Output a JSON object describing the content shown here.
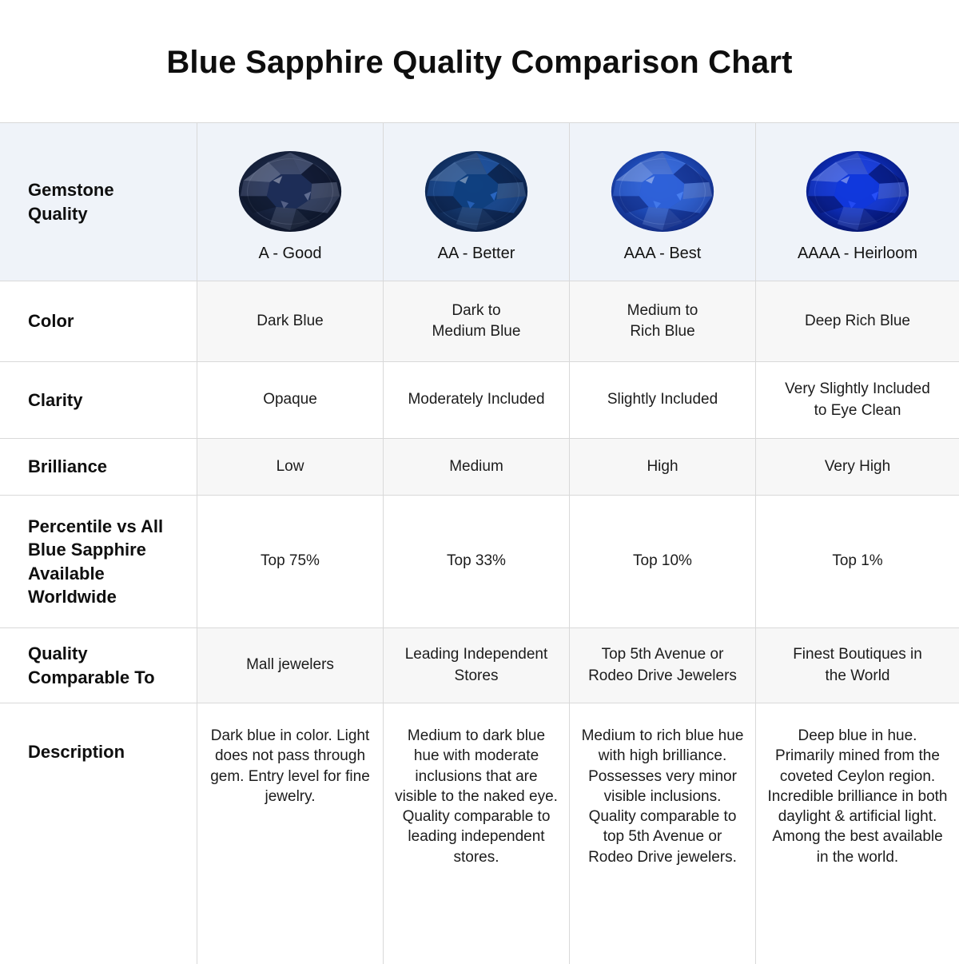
{
  "title": "Blue Sapphire Quality Comparison Chart",
  "palette": {
    "header_bg": "#eff3f9",
    "shaded_cell_bg": "#f7f7f7",
    "border": "#d9d9d9",
    "title_color": "#0e0e0e",
    "text_color": "#1c1c1c"
  },
  "header": {
    "label": "Gemstone\nQuality",
    "columns": [
      {
        "grade": "A - Good",
        "gem_name": "dark-navy-sapphire",
        "gem": {
          "edge": "#0c1326",
          "mid": "#17233f",
          "core": "#1d2e58",
          "facet": "#9aa3bd",
          "glint": "#717c9e"
        }
      },
      {
        "grade": "AA - Better",
        "gem_name": "dark-blue-sapphire",
        "gem": {
          "edge": "#0a1c40",
          "mid": "#123366",
          "core": "#0f4080",
          "facet": "#6f95c8",
          "glint": "#2f6fd0"
        }
      },
      {
        "grade": "AAA - Best",
        "gem_name": "royal-blue-sapphire",
        "gem": {
          "edge": "#10267a",
          "mid": "#1d49b4",
          "core": "#2f62d9",
          "facet": "#a5c0f5",
          "glint": "#4f86f5"
        }
      },
      {
        "grade": "AAAA - Heirloom",
        "gem_name": "vivid-cobalt-sapphire",
        "gem": {
          "edge": "#051263",
          "mid": "#0c2aaf",
          "core": "#1038dd",
          "facet": "#8fa8ff",
          "glint": "#2c55ff"
        }
      }
    ]
  },
  "chart_data": {
    "type": "table",
    "title": "Blue Sapphire Quality Comparison Chart",
    "columns": [
      "Gemstone Quality",
      "A - Good",
      "AA - Better",
      "AAA - Best",
      "AAAA - Heirloom"
    ],
    "rows": [
      {
        "label": "Color",
        "values": [
          "Dark Blue",
          "Dark to\nMedium Blue",
          "Medium to\nRich Blue",
          "Deep Rich Blue"
        ]
      },
      {
        "label": "Clarity",
        "values": [
          "Opaque",
          "Moderately Included",
          "Slightly Included",
          "Very Slightly Included\nto Eye Clean"
        ]
      },
      {
        "label": "Brilliance",
        "values": [
          "Low",
          "Medium",
          "High",
          "Very High"
        ]
      },
      {
        "label": "Percentile vs All\nBlue Sapphire\nAvailable\nWorldwide",
        "values": [
          "Top 75%",
          "Top 33%",
          "Top 10%",
          "Top 1%"
        ]
      },
      {
        "label": "Quality\nComparable To",
        "values": [
          "Mall jewelers",
          "Leading Independent\nStores",
          "Top 5th Avenue or\nRodeo Drive Jewelers",
          "Finest Boutiques in\nthe World"
        ]
      },
      {
        "label": "Description",
        "values": [
          "Dark blue in color. Light does not pass through gem. Entry level for fine jewelry.",
          "Medium to dark blue hue with moderate inclusions that are visible to the naked eye. Quality comparable to leading independent stores.",
          "Medium to rich blue hue with high brilliance. Possesses very minor visible inclusions. Quality comparable to top 5th Avenue or Rodeo Drive jewelers.",
          "Deep blue in hue. Primarily mined from the coveted Ceylon region. Incredible brilliance in both daylight & artificial light. Among the best available in the world."
        ]
      }
    ]
  }
}
